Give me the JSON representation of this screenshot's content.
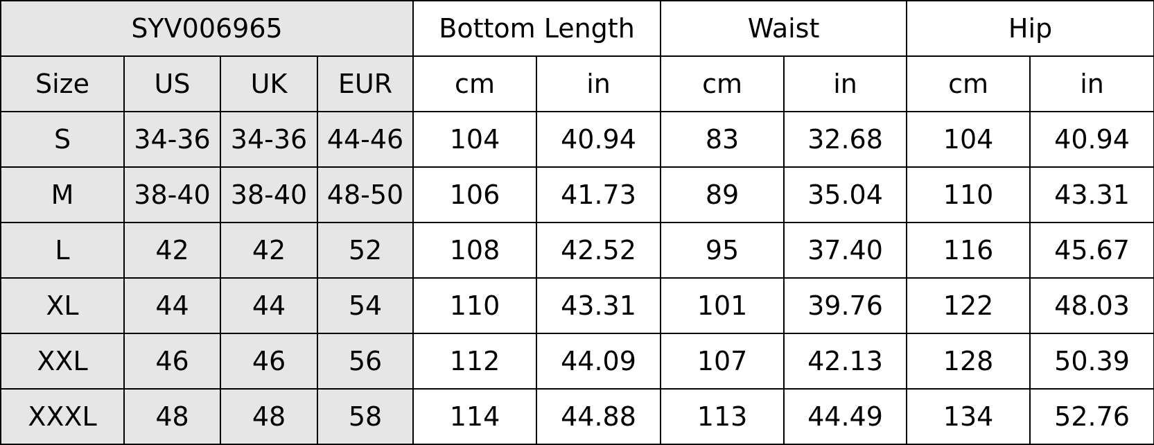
{
  "table": {
    "style_code": "SYV006965",
    "groups": [
      "Bottom Length",
      "Waist",
      "Hip"
    ],
    "subheaders": [
      "Size",
      "US",
      "UK",
      "EUR",
      "cm",
      "in",
      "cm",
      "in",
      "cm",
      "in"
    ],
    "rows": [
      [
        "S",
        "34-36",
        "34-36",
        "44-46",
        "104",
        "40.94",
        "83",
        "32.68",
        "104",
        "40.94"
      ],
      [
        "M",
        "38-40",
        "38-40",
        "48-50",
        "106",
        "41.73",
        "89",
        "35.04",
        "110",
        "43.31"
      ],
      [
        "L",
        "42",
        "42",
        "52",
        "108",
        "42.52",
        "95",
        "37.40",
        "116",
        "45.67"
      ],
      [
        "XL",
        "44",
        "44",
        "54",
        "110",
        "43.31",
        "101",
        "39.76",
        "122",
        "48.03"
      ],
      [
        "XXL",
        "46",
        "46",
        "56",
        "112",
        "44.09",
        "107",
        "42.13",
        "128",
        "50.39"
      ],
      [
        "XXXL",
        "48",
        "48",
        "58",
        "114",
        "44.88",
        "113",
        "44.49",
        "134",
        "52.76"
      ]
    ],
    "colors": {
      "size_columns_bg": "#e6e6e6",
      "border": "#000000"
    }
  }
}
